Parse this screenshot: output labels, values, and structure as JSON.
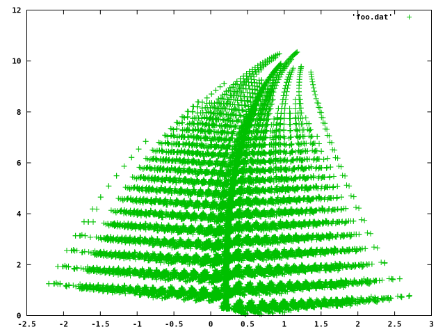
{
  "chart_data": {
    "type": "scatter",
    "title": "",
    "xlabel": "",
    "ylabel": "",
    "xlim": [
      -2.5,
      3
    ],
    "ylim": [
      0,
      12
    ],
    "grid": false,
    "legend_placement": "top-right",
    "x_ticks": [
      -2.5,
      -2,
      -1.5,
      -1,
      -0.5,
      0,
      0.5,
      1,
      1.5,
      2,
      2.5,
      3
    ],
    "x_tick_labels": [
      "-2.5",
      "-2",
      "-1.5",
      "-1",
      "-0.5",
      "0",
      "0.5",
      "1",
      "1.5",
      "2",
      "2.5",
      "3"
    ],
    "y_ticks": [
      0,
      2,
      4,
      6,
      8,
      10,
      12
    ],
    "y_tick_labels": [
      "0",
      "2",
      "4",
      "6",
      "8",
      "10",
      "12"
    ],
    "marker": "+",
    "color": "#00c000",
    "series": [
      {
        "name": "'foo.dat'",
        "generator": "iterated function system (fern)",
        "point_count": 25000,
        "points_sample": [
          [
            0.0,
            0.3
          ],
          [
            0.0,
            1.7
          ],
          [
            -0.1,
            2.6
          ],
          [
            0.1,
            3.6
          ],
          [
            0.2,
            4.8
          ],
          [
            0.35,
            6.0
          ],
          [
            0.5,
            7.3
          ],
          [
            0.75,
            8.7
          ],
          [
            1.0,
            9.8
          ],
          [
            1.17,
            10.35
          ],
          [
            -2.2,
            4.15
          ],
          [
            -1.25,
            5.2
          ],
          [
            -0.65,
            6.0
          ],
          [
            -0.2,
            6.7
          ],
          [
            -1.95,
            2.0
          ],
          [
            -1.3,
            1.75
          ],
          [
            1.9,
            4.25
          ],
          [
            2.7,
            3.25
          ],
          [
            1.5,
            0.85
          ],
          [
            0.1,
            0.75
          ]
        ]
      }
    ]
  }
}
